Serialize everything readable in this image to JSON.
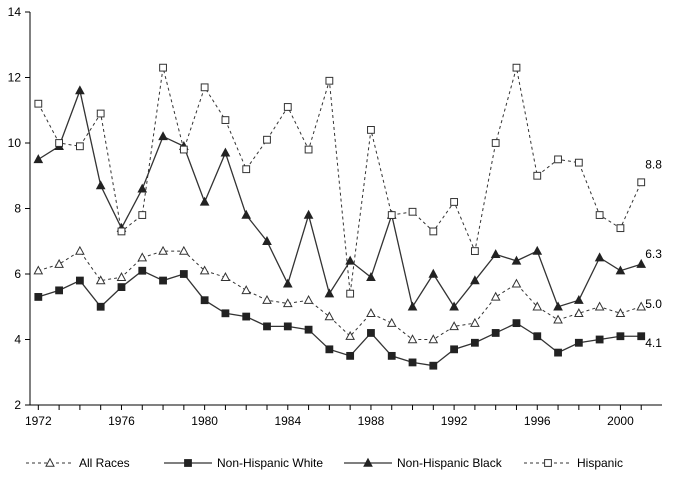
{
  "chart_data": {
    "type": "line",
    "x": [
      1972,
      1973,
      1974,
      1975,
      1976,
      1977,
      1978,
      1979,
      1980,
      1981,
      1982,
      1983,
      1984,
      1985,
      1986,
      1987,
      1988,
      1989,
      1990,
      1991,
      1992,
      1993,
      1994,
      1995,
      1996,
      1997,
      1998,
      1999,
      2000,
      2001
    ],
    "xticks": [
      1972,
      1976,
      1980,
      1984,
      1988,
      1992,
      1996,
      2000
    ],
    "yticks": [
      2,
      4,
      6,
      8,
      10,
      12,
      14
    ],
    "ylim": [
      2,
      14
    ],
    "xlim": [
      1971.6,
      2002
    ],
    "grid": false,
    "legend_position": "bottom",
    "series": [
      {
        "key": "all",
        "name": "All Races",
        "marker": "triangle-open",
        "dash": true,
        "end_label": "5.0",
        "values": [
          6.1,
          6.3,
          6.7,
          5.8,
          5.9,
          6.5,
          6.7,
          6.7,
          6.1,
          5.9,
          5.5,
          5.2,
          5.1,
          5.2,
          4.7,
          4.1,
          4.8,
          4.5,
          4.0,
          4.0,
          4.4,
          4.5,
          5.3,
          5.7,
          5.0,
          4.6,
          4.8,
          5.0,
          4.8,
          5.0
        ]
      },
      {
        "key": "white",
        "name": "Non-Hispanic White",
        "marker": "square-filled",
        "dash": false,
        "end_label": "4.1",
        "values": [
          5.3,
          5.5,
          5.8,
          5.0,
          5.6,
          6.1,
          5.8,
          6.0,
          5.2,
          4.8,
          4.7,
          4.4,
          4.4,
          4.3,
          3.7,
          3.5,
          4.2,
          3.5,
          3.3,
          3.2,
          3.7,
          3.9,
          4.2,
          4.5,
          4.1,
          3.6,
          3.9,
          4.0,
          4.1,
          4.1
        ]
      },
      {
        "key": "black",
        "name": "Non-Hispanic Black",
        "marker": "triangle-filled",
        "dash": false,
        "end_label": "6.3",
        "values": [
          9.5,
          9.9,
          11.6,
          8.7,
          7.4,
          8.6,
          10.2,
          9.9,
          8.2,
          9.7,
          7.8,
          7.0,
          5.7,
          7.8,
          5.4,
          6.4,
          5.9,
          7.8,
          5.0,
          6.0,
          5.0,
          5.8,
          6.6,
          6.4,
          6.7,
          5.0,
          5.2,
          6.5,
          6.1,
          6.3
        ]
      },
      {
        "key": "hispanic",
        "name": "Hispanic",
        "marker": "square-open",
        "dash": true,
        "end_label": "8.8",
        "values": [
          11.2,
          10.0,
          9.9,
          10.9,
          7.3,
          7.8,
          12.3,
          9.8,
          11.7,
          10.7,
          9.2,
          10.1,
          11.1,
          9.8,
          11.9,
          5.4,
          10.4,
          7.8,
          7.9,
          7.3,
          8.2,
          6.7,
          10.0,
          12.3,
          9.0,
          9.5,
          9.4,
          7.8,
          7.4,
          8.8
        ]
      }
    ]
  }
}
